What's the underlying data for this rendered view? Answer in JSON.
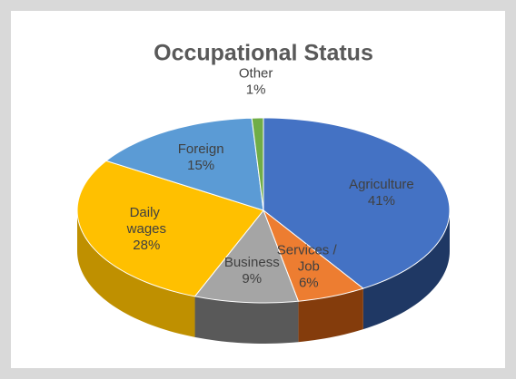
{
  "chart_data": {
    "type": "pie3d",
    "title": "Occupational Status",
    "categories": [
      "Agriculture",
      "Services / Job",
      "Business",
      "Daily wages",
      "Foreign",
      "Other"
    ],
    "values": [
      41,
      6,
      9,
      28,
      15,
      1
    ],
    "value_labels": [
      "41%",
      "6%",
      "9%",
      "28%",
      "15%",
      "1%"
    ],
    "colors": [
      "#4472c4",
      "#ed7d31",
      "#a5a5a5",
      "#ffc000",
      "#5b9bd5",
      "#70ad47"
    ],
    "side_colors": [
      "#1f3864",
      "#843c0c",
      "#595959",
      "#bf9000",
      "#2e75b6",
      "#375623"
    ]
  }
}
